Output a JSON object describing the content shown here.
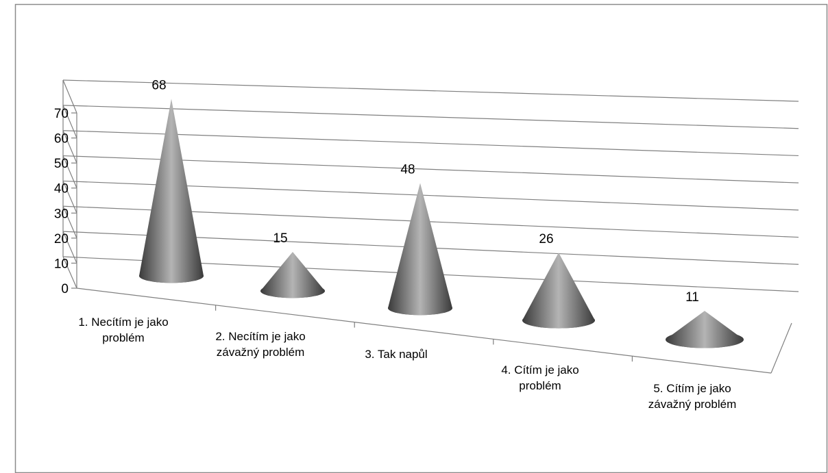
{
  "chart_data": {
    "type": "bar",
    "shape": "cone-3d",
    "title": "",
    "xlabel": "",
    "ylabel": "",
    "categories": [
      [
        "1. Necítím je jako",
        "problém"
      ],
      [
        "2. Necítím je jako",
        "závažný problém"
      ],
      [
        "3. Tak napůl"
      ],
      [
        "4. Cítím je jako",
        "problém"
      ],
      [
        "5. Cítím je jako",
        "závažný problém"
      ]
    ],
    "values": [
      68,
      15,
      48,
      26,
      11
    ],
    "data_labels": [
      "68",
      "15",
      "48",
      "26",
      "11"
    ],
    "ylim": [
      0,
      70
    ],
    "yticks": [
      "0",
      "10",
      "20",
      "30",
      "40",
      "50",
      "60",
      "70"
    ],
    "grid": true,
    "legend": "none",
    "colors": {
      "cone_dark": "#3a3a3a",
      "cone_mid": "#707070",
      "cone_light": "#b4b4b4",
      "gridline": "#7f7f7f",
      "border": "#8a8a8a"
    }
  }
}
